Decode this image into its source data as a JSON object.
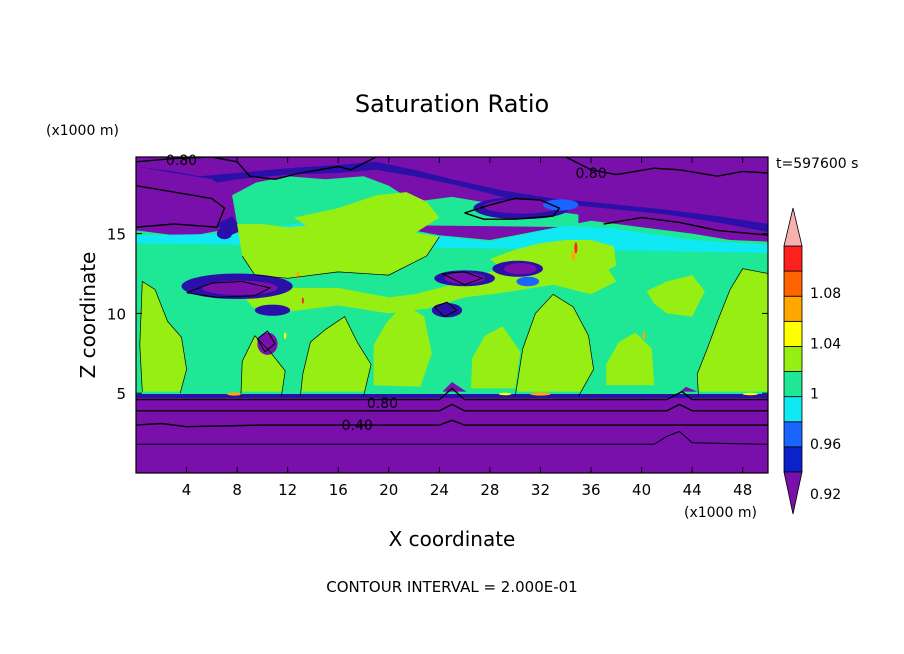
{
  "chart_data": {
    "type": "heatmap",
    "title": "Saturation Ratio",
    "xlabel": "X coordinate",
    "ylabel": "Z coordinate",
    "x_unit": "(x1000 m)",
    "z_unit": "(x1000 m)",
    "time_label": "t=597600 s",
    "footer": "CONTOUR INTERVAL = 2.000E-01",
    "xlim": [
      0,
      50
    ],
    "ylim": [
      0,
      19.8
    ],
    "x_ticks": [
      4,
      8,
      12,
      16,
      20,
      24,
      28,
      32,
      36,
      40,
      44,
      48
    ],
    "y_ticks": [
      5,
      10,
      15
    ],
    "colorbar": {
      "levels": [
        0.92,
        0.94,
        0.96,
        0.98,
        1,
        1.02,
        1.04,
        1.06,
        1.08,
        1.1
      ],
      "tick_labels": [
        "0.92",
        "0.96",
        "1",
        "1.04",
        "1.08"
      ],
      "tick_values": [
        0.92,
        0.96,
        1.0,
        1.04,
        1.08
      ],
      "colors": {
        "below": "#7a10ab",
        "bins": [
          "#2a0fa8",
          "#0b22c8",
          "#1a64ff",
          "#10e8f4",
          "#1ee896",
          "#96ee12",
          "#ffff00",
          "#ffa700",
          "#ff6400",
          "#ff2020"
        ],
        "above": "#f7b0b0"
      }
    },
    "contour_labels": [
      {
        "text": "0.80",
        "x": 3.6,
        "z": 19.6
      },
      {
        "text": "0.80",
        "x": 36.0,
        "z": 18.8
      },
      {
        "text": "0.80",
        "x": 19.5,
        "z": 4.4
      },
      {
        "text": "0.40",
        "x": 17.5,
        "z": 3.0
      }
    ]
  }
}
